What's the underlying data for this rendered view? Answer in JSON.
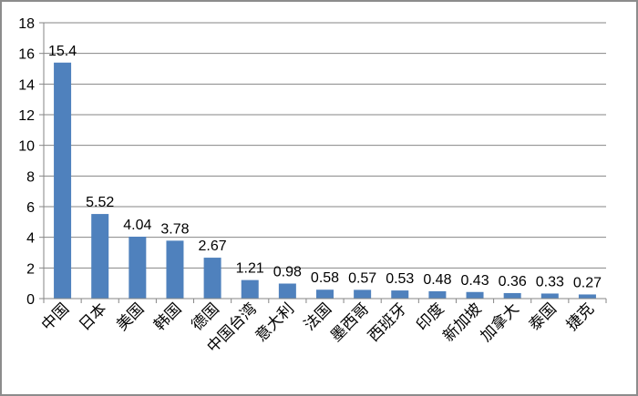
{
  "chart_data": {
    "type": "bar",
    "categories": [
      "中国",
      "日本",
      "美国",
      "韩国",
      "德国",
      "中国台湾",
      "意大利",
      "法国",
      "墨西哥",
      "西班牙",
      "印度",
      "新加坡",
      "加拿大",
      "泰国",
      "捷克"
    ],
    "values": [
      15.4,
      5.52,
      4.04,
      3.78,
      2.67,
      1.21,
      0.98,
      0.58,
      0.57,
      0.53,
      0.48,
      0.43,
      0.36,
      0.33,
      0.27
    ],
    "data_labels": [
      "15.4",
      "5.52",
      "4.04",
      "3.78",
      "2.67",
      "1.21",
      "0.98",
      "0.58",
      "0.57",
      "0.53",
      "0.48",
      "0.43",
      "0.36",
      "0.33",
      "0.27"
    ],
    "y_ticks": [
      "0",
      "2",
      "4",
      "6",
      "8",
      "10",
      "12",
      "14",
      "16",
      "18"
    ],
    "ylim": [
      0,
      18
    ],
    "bar_color": "#4f81bd",
    "grid": true,
    "legend": false
  }
}
